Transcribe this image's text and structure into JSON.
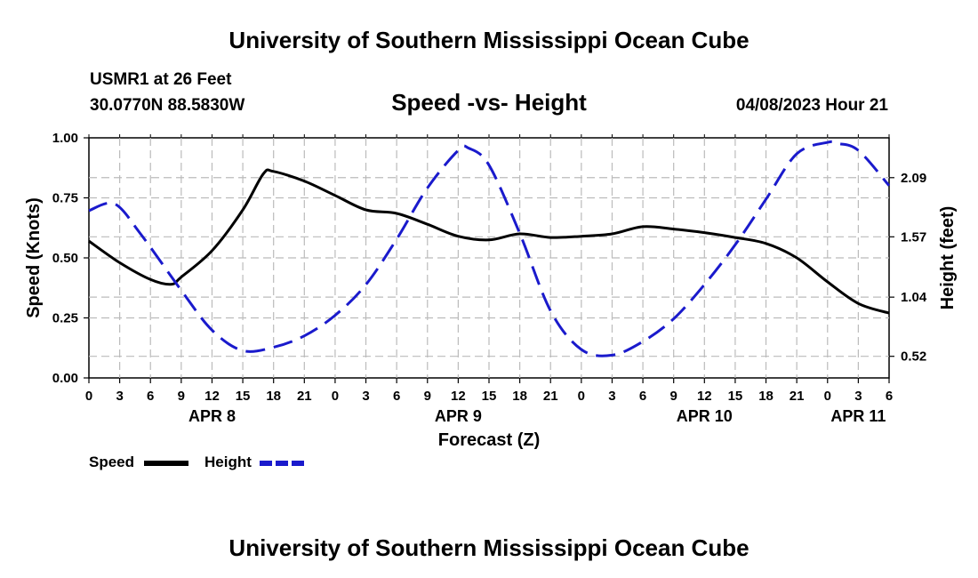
{
  "header": {
    "title": "University of Southern Mississippi Ocean Cube",
    "station": "USMR1 at 26 Feet",
    "location": "30.0770N  88.5830W",
    "subtitle": "Speed -vs- Height",
    "timestamp": "04/08/2023 Hour 21"
  },
  "footer": {
    "title": "University of Southern Mississippi Ocean Cube"
  },
  "legend": {
    "speed_label": "Speed",
    "height_label": "Height"
  },
  "colors": {
    "speed": "#000000",
    "height": "#1a1acc",
    "grid": "#bbbbbb"
  },
  "chart_data": {
    "type": "line",
    "title": "Speed -vs- Height",
    "xlabel": "Forecast (Z)",
    "ylabel": "Speed (Knots)",
    "y2label": "Height (feet)",
    "xlim": [
      0,
      78
    ],
    "ylim": [
      0,
      1.0
    ],
    "y2lim": [
      0.33,
      2.44
    ],
    "grid": true,
    "legend_position": "bottom-left",
    "x_ticks": [
      0,
      3,
      6,
      9,
      12,
      15,
      18,
      21,
      24,
      27,
      30,
      33,
      36,
      39,
      42,
      45,
      48,
      51,
      54,
      57,
      60,
      63,
      66,
      69,
      72,
      75,
      78
    ],
    "x_tick_labels": [
      "0",
      "3",
      "6",
      "9",
      "12",
      "15",
      "18",
      "21",
      "0",
      "3",
      "6",
      "9",
      "12",
      "15",
      "18",
      "21",
      "0",
      "3",
      "6",
      "9",
      "12",
      "15",
      "18",
      "21",
      "0",
      "3",
      "6"
    ],
    "date_labels": [
      {
        "label": "APR 8",
        "hour": 12
      },
      {
        "label": "APR 9",
        "hour": 36
      },
      {
        "label": "APR 10",
        "hour": 60
      },
      {
        "label": "APR 11",
        "hour": 75
      }
    ],
    "y_ticks": [
      0.0,
      0.25,
      0.5,
      0.75,
      1.0
    ],
    "y_tick_labels": [
      "0.00",
      "0.25",
      "0.50",
      "0.75",
      "1.00"
    ],
    "y2_ticks": [
      0.52,
      1.04,
      1.57,
      2.09
    ],
    "y2_tick_labels": [
      "0.52",
      "1.04",
      "1.57",
      "2.09"
    ],
    "series": [
      {
        "name": "Speed",
        "axis": "left",
        "style": "solid",
        "x": [
          0,
          3,
          6,
          8,
          9,
          12,
          15,
          17,
          18,
          21,
          24,
          27,
          30,
          33,
          36,
          39,
          42,
          45,
          48,
          51,
          54,
          57,
          60,
          63,
          66,
          69,
          72,
          75,
          78
        ],
        "values": [
          0.57,
          0.48,
          0.41,
          0.39,
          0.42,
          0.53,
          0.7,
          0.85,
          0.86,
          0.82,
          0.76,
          0.7,
          0.685,
          0.64,
          0.59,
          0.575,
          0.6,
          0.585,
          0.59,
          0.6,
          0.63,
          0.62,
          0.605,
          0.585,
          0.56,
          0.5,
          0.4,
          0.31,
          0.27
        ]
      },
      {
        "name": "Height",
        "axis": "right",
        "style": "dashed",
        "x": [
          0,
          2.5,
          5,
          9,
          12,
          15,
          18,
          21,
          24,
          27,
          30,
          33,
          36,
          37,
          39,
          42,
          45,
          48,
          51,
          54,
          57,
          60,
          63,
          66,
          69,
          72,
          73,
          75,
          78
        ],
        "values": [
          1.8,
          1.86,
          1.6,
          1.1,
          0.75,
          0.57,
          0.6,
          0.7,
          0.88,
          1.15,
          1.55,
          2.0,
          2.33,
          2.35,
          2.2,
          1.6,
          0.92,
          0.58,
          0.53,
          0.65,
          0.85,
          1.15,
          1.5,
          1.9,
          2.3,
          2.4,
          2.39,
          2.33,
          2.02
        ]
      }
    ]
  }
}
